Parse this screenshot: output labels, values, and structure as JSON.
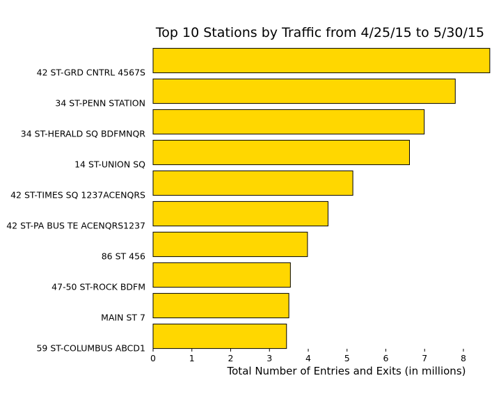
{
  "chart_data": {
    "type": "bar",
    "orientation": "horizontal",
    "title": "Top 10 Stations by Traffic from 4/25/15 to 5/30/15",
    "xlabel": "Total Number of Entries and Exits (in millions)",
    "ylabel": "",
    "categories": [
      "42 ST-GRD CNTRL 4567S",
      "34 ST-PENN STATION",
      "34 ST-HERALD SQ BDFMNQR",
      "14 ST-UNION SQ",
      "42 ST-TIMES SQ 1237ACENQRS",
      "42 ST-PA BUS TE ACENQRS1237",
      "86 ST 456",
      "47-50 ST-ROCK BDFM",
      "MAIN ST 7",
      "59 ST-COLUMBUS ABCD1"
    ],
    "values": [
      8.68,
      7.79,
      6.99,
      6.61,
      5.15,
      4.51,
      3.98,
      3.54,
      3.5,
      3.44
    ],
    "xlim": [
      0,
      8.7
    ],
    "xticks": [
      0,
      1,
      2,
      3,
      4,
      5,
      6,
      7,
      8
    ],
    "bar_color": "#FFD700",
    "edge_color": "#000000",
    "grid": false,
    "legend": "none"
  }
}
